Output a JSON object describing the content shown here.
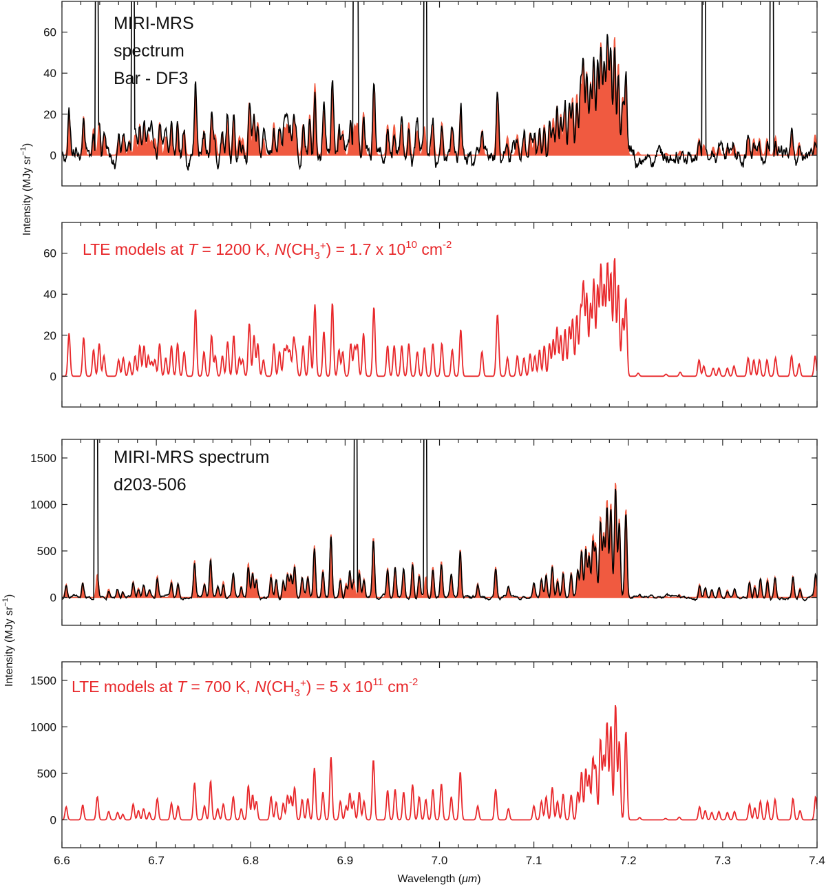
{
  "figure": {
    "xlabel_prefix": "Wavelength (",
    "xlabel_unit": "μm",
    "xlabel_suffix": ")",
    "ylabel_prefix": "Intensity (MJy sr",
    "ylabel_exp": "−1",
    "ylabel_suffix": ")"
  },
  "colors": {
    "observed": "#000000",
    "model_fill": "#f05a40",
    "model_line": "#e8282b"
  },
  "annotations": {
    "p1_line1": "MIRI-MRS",
    "p1_line2": "spectrum",
    "p1_line3": "Bar - DF3",
    "p3_line1": "MIRI-MRS spectrum",
    "p3_line2": "d203-506",
    "p2_a": "LTE models at ",
    "p2_T": "T",
    "p2_b": " = 1200 K, ",
    "p2_N": "N",
    "p2_c": "(CH",
    "p2_sub": "3",
    "p2_sup": "+",
    "p2_d": ") = 1.7 x 10",
    "p2_exp": "10",
    "p2_e": " cm",
    "p2_exp2": "-2",
    "p4_a": "LTE models at ",
    "p4_T": "T",
    "p4_b": " = 700 K, ",
    "p4_N": "N",
    "p4_c": "(CH",
    "p4_sub": "3",
    "p4_sup": "+",
    "p4_d": ") = 5 x 10",
    "p4_exp": "11",
    "p4_e": " cm",
    "p4_exp2": "-2"
  },
  "chart_data": [
    {
      "type": "line",
      "panel": "Bar - DF3 observed vs model",
      "xlim": [
        6.6,
        7.4
      ],
      "ylim": [
        -15,
        75
      ],
      "yticks": [
        0,
        20,
        40,
        60
      ],
      "ytick_labels": [
        "0",
        "20",
        "40",
        "60"
      ],
      "xticks": [
        6.6,
        6.7,
        6.8,
        6.9,
        7.0,
        7.1,
        7.2,
        7.3,
        7.4
      ],
      "xtick_labels": [],
      "series": [
        {
          "name": "LTE model (filled)",
          "style": "fill",
          "scale": 1.0,
          "peaks": []
        },
        {
          "name": "MIRI-MRS observed",
          "style": "line",
          "scale": 1.0,
          "noise_amp": 6,
          "spikes": [
            [
              6.637,
              80
            ],
            [
              6.675,
              80
            ],
            [
              6.91,
              80
            ],
            [
              6.912,
              80
            ],
            [
              6.985,
              80
            ],
            [
              7.28,
              80
            ],
            [
              7.352,
              80
            ]
          ]
        }
      ]
    },
    {
      "type": "line",
      "panel": "LTE model T = 1200 K",
      "xlim": [
        6.6,
        7.4
      ],
      "ylim": [
        -15,
        75
      ],
      "yticks": [
        0,
        20,
        40,
        60
      ],
      "ytick_labels": [
        "0",
        "20",
        "40",
        "60"
      ],
      "xticks": [
        6.6,
        6.7,
        6.8,
        6.9,
        7.0,
        7.1,
        7.2,
        7.3,
        7.4
      ],
      "xtick_labels": [],
      "series": [
        {
          "name": "LTE model",
          "style": "line",
          "scale": 1.0,
          "peaks": [
            [
              6.6075,
              21
            ],
            [
              6.623,
              19
            ],
            [
              6.6335,
              13
            ],
            [
              6.6395,
              16
            ],
            [
              6.6445,
              10
            ],
            [
              6.66,
              8
            ],
            [
              6.665,
              9
            ],
            [
              6.6715,
              7
            ],
            [
              6.6775,
              10
            ],
            [
              6.6825,
              15
            ],
            [
              6.687,
              15
            ],
            [
              6.6915,
              10
            ],
            [
              6.695,
              7
            ],
            [
              6.6985,
              8
            ],
            [
              6.7035,
              16
            ],
            [
              6.71,
              9
            ],
            [
              6.716,
              15
            ],
            [
              6.7225,
              16
            ],
            [
              6.7295,
              12
            ],
            [
              6.7415,
              33
            ],
            [
              6.7505,
              12
            ],
            [
              6.7585,
              20
            ],
            [
              6.7625,
              10
            ],
            [
              6.77,
              10
            ],
            [
              6.7755,
              17
            ],
            [
              6.782,
              20
            ],
            [
              6.788,
              9
            ],
            [
              6.7915,
              8
            ],
            [
              6.7985,
              26
            ],
            [
              6.8035,
              20
            ],
            [
              6.8075,
              16
            ],
            [
              6.8135,
              8
            ],
            [
              6.8245,
              16
            ],
            [
              6.8305,
              12
            ],
            [
              6.8355,
              13
            ],
            [
              6.8385,
              14
            ],
            [
              6.8415,
              12
            ],
            [
              6.8455,
              18
            ],
            [
              6.848,
              10
            ],
            [
              6.8555,
              15
            ],
            [
              6.8625,
              20
            ],
            [
              6.868,
              35
            ],
            [
              6.8775,
              22
            ],
            [
              6.8865,
              36
            ],
            [
              6.8935,
              13
            ],
            [
              6.8975,
              12
            ],
            [
              6.906,
              16
            ],
            [
              6.91,
              14
            ],
            [
              6.913,
              15
            ],
            [
              6.9195,
              21
            ],
            [
              6.9305,
              34
            ],
            [
              6.945,
              15
            ],
            [
              6.952,
              15
            ],
            [
              6.96,
              15
            ],
            [
              6.9675,
              16
            ],
            [
              6.9765,
              12
            ],
            [
              6.984,
              14
            ],
            [
              6.993,
              16
            ],
            [
              7.0025,
              16
            ],
            [
              7.0135,
              13
            ],
            [
              7.0225,
              23
            ],
            [
              7.045,
              12
            ],
            [
              7.061,
              18
            ],
            [
              7.062,
              15
            ],
            [
              7.072,
              9
            ],
            [
              7.0825,
              10
            ],
            [
              7.0895,
              9
            ],
            [
              7.096,
              11
            ],
            [
              7.101,
              10
            ],
            [
              7.106,
              13
            ],
            [
              7.111,
              15
            ],
            [
              7.1165,
              16
            ],
            [
              7.1205,
              18
            ],
            [
              7.1245,
              24
            ],
            [
              7.1285,
              20
            ],
            [
              7.133,
              23
            ],
            [
              7.1375,
              24
            ],
            [
              7.141,
              28
            ],
            [
              7.1455,
              30
            ],
            [
              7.1495,
              32
            ],
            [
              7.1525,
              45
            ],
            [
              7.156,
              40
            ],
            [
              7.16,
              35
            ],
            [
              7.1635,
              47
            ],
            [
              7.1675,
              44
            ],
            [
              7.171,
              54
            ],
            [
              7.1745,
              44
            ],
            [
              7.178,
              55
            ],
            [
              7.1815,
              50
            ],
            [
              7.1855,
              58
            ],
            [
              7.1895,
              45
            ],
            [
              7.194,
              28
            ],
            [
              7.1975,
              38
            ],
            [
              7.2105,
              1.5
            ],
            [
              7.24,
              1
            ],
            [
              7.255,
              2
            ],
            [
              7.275,
              8
            ],
            [
              7.28,
              5
            ],
            [
              7.29,
              4
            ],
            [
              7.296,
              4
            ],
            [
              7.305,
              4
            ],
            [
              7.312,
              5
            ],
            [
              7.327,
              9
            ],
            [
              7.333,
              8
            ],
            [
              7.339,
              8
            ],
            [
              7.347,
              8
            ],
            [
              7.356,
              9
            ],
            [
              7.373,
              10
            ],
            [
              7.381,
              6
            ],
            [
              7.398,
              10
            ]
          ]
        }
      ]
    },
    {
      "type": "line",
      "panel": "d203-506 observed vs model",
      "xlim": [
        6.6,
        7.4
      ],
      "ylim": [
        -300,
        1700
      ],
      "yticks": [
        0,
        500,
        1000,
        1500
      ],
      "ytick_labels": [
        "0",
        "500",
        "1000",
        "1500"
      ],
      "xticks": [
        6.6,
        6.7,
        6.8,
        6.9,
        7.0,
        7.1,
        7.2,
        7.3,
        7.4
      ],
      "xtick_labels": [],
      "series": [
        {
          "name": "LTE model (filled)",
          "style": "fill",
          "scale": 1.0,
          "peaks": []
        },
        {
          "name": "MIRI-MRS observed",
          "style": "line",
          "scale": 0.95,
          "noise_amp": 25,
          "spikes": [
            [
              6.636,
              1800
            ],
            [
              6.911,
              1800
            ],
            [
              6.985,
              1800
            ]
          ]
        }
      ]
    },
    {
      "type": "line",
      "panel": "LTE model T = 700 K",
      "xlim": [
        6.6,
        7.4
      ],
      "ylim": [
        -300,
        1700
      ],
      "yticks": [
        0,
        500,
        1000,
        1500
      ],
      "ytick_labels": [
        "0",
        "500",
        "1000",
        "1500"
      ],
      "xticks": [
        6.6,
        6.7,
        6.8,
        6.9,
        7.0,
        7.1,
        7.2,
        7.3,
        7.4
      ],
      "xtick_labels": [
        "6.6",
        "6.7",
        "6.8",
        "6.9",
        "7.0",
        "7.1",
        "7.2",
        "7.3",
        "7.4"
      ],
      "series": [
        {
          "name": "LTE model",
          "style": "line",
          "scale": 1.0,
          "peaks": [
            [
              6.6045,
              140
            ],
            [
              6.622,
              160
            ],
            [
              6.6375,
              250
            ],
            [
              6.6495,
              90
            ],
            [
              6.659,
              80
            ],
            [
              6.6645,
              60
            ],
            [
              6.6755,
              170
            ],
            [
              6.681,
              100
            ],
            [
              6.6865,
              120
            ],
            [
              6.6925,
              80
            ],
            [
              6.701,
              230
            ],
            [
              6.716,
              180
            ],
            [
              6.723,
              150
            ],
            [
              6.7405,
              400
            ],
            [
              6.751,
              150
            ],
            [
              6.7575,
              420
            ],
            [
              6.765,
              120
            ],
            [
              6.771,
              170
            ],
            [
              6.7815,
              250
            ],
            [
              6.79,
              120
            ],
            [
              6.7975,
              370
            ],
            [
              6.802,
              270
            ],
            [
              6.806,
              200
            ],
            [
              6.8215,
              250
            ],
            [
              6.827,
              190
            ],
            [
              6.8345,
              180
            ],
            [
              6.839,
              260
            ],
            [
              6.8425,
              250
            ],
            [
              6.8465,
              350
            ],
            [
              6.8545,
              220
            ],
            [
              6.8605,
              230
            ],
            [
              6.8675,
              560
            ],
            [
              6.8765,
              300
            ],
            [
              6.885,
              680
            ],
            [
              6.895,
              200
            ],
            [
              6.901,
              150
            ],
            [
              6.905,
              290
            ],
            [
              6.909,
              200
            ],
            [
              6.915,
              300
            ],
            [
              6.92,
              200
            ],
            [
              6.93,
              650
            ],
            [
              6.945,
              320
            ],
            [
              6.953,
              330
            ],
            [
              6.962,
              300
            ],
            [
              6.9715,
              380
            ],
            [
              6.9785,
              250
            ],
            [
              6.9855,
              220
            ],
            [
              6.993,
              330
            ],
            [
              7.002,
              390
            ],
            [
              7.0125,
              250
            ],
            [
              7.022,
              520
            ],
            [
              7.0405,
              150
            ],
            [
              7.0595,
              330
            ],
            [
              7.073,
              120
            ],
            [
              7.1,
              150
            ],
            [
              7.108,
              200
            ],
            [
              7.113,
              250
            ],
            [
              7.1195,
              350
            ],
            [
              7.125,
              200
            ],
            [
              7.131,
              280
            ],
            [
              7.1395,
              270
            ],
            [
              7.1465,
              300
            ],
            [
              7.1505,
              520
            ],
            [
              7.155,
              550
            ],
            [
              7.1585,
              480
            ],
            [
              7.1625,
              650
            ],
            [
              7.1655,
              560
            ],
            [
              7.1705,
              870
            ],
            [
              7.174,
              680
            ],
            [
              7.1775,
              1050
            ],
            [
              7.1815,
              1020
            ],
            [
              7.1865,
              1250
            ],
            [
              7.1905,
              850
            ],
            [
              7.1975,
              960
            ],
            [
              7.212,
              25
            ],
            [
              7.2395,
              15
            ],
            [
              7.254,
              30
            ],
            [
              7.2755,
              140
            ],
            [
              7.2815,
              100
            ],
            [
              7.2885,
              80
            ],
            [
              7.296,
              90
            ],
            [
              7.305,
              80
            ],
            [
              7.3125,
              90
            ],
            [
              7.3285,
              170
            ],
            [
              7.334,
              130
            ],
            [
              7.34,
              200
            ],
            [
              7.3475,
              200
            ],
            [
              7.3555,
              220
            ],
            [
              7.3745,
              230
            ],
            [
              7.382,
              100
            ],
            [
              7.3985,
              250
            ]
          ]
        }
      ]
    }
  ]
}
